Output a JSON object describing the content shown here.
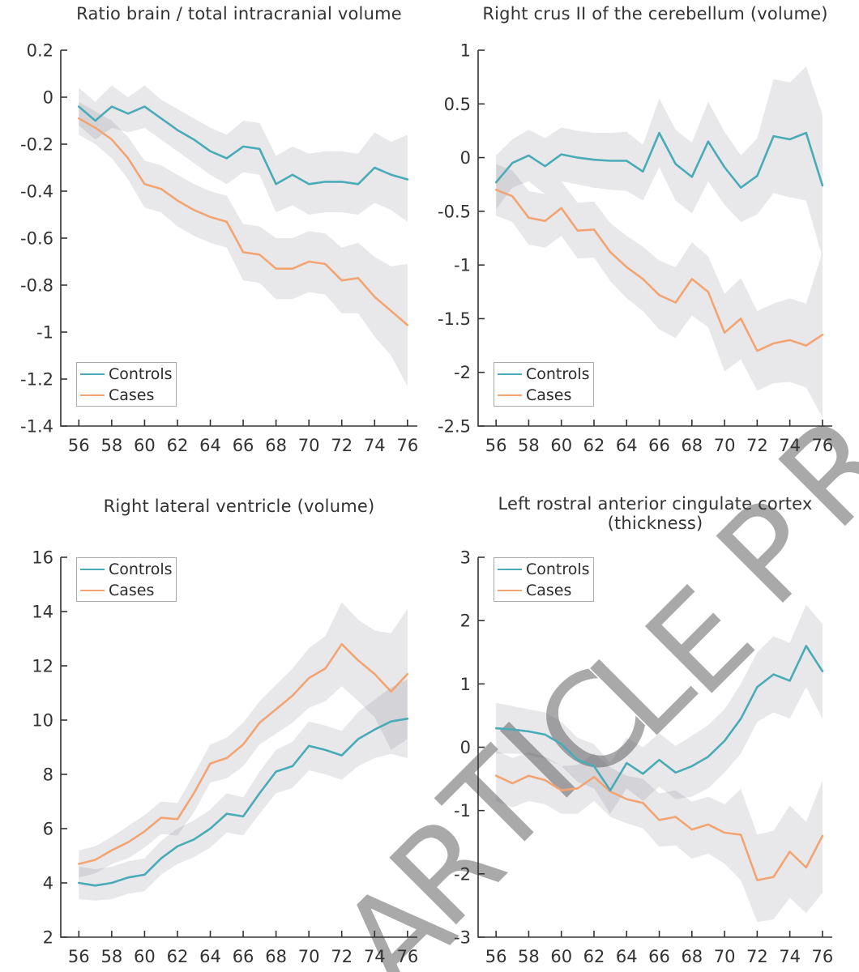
{
  "watermark": {
    "text": "ARTICLE PR"
  },
  "legend_labels": {
    "controls": "Controls",
    "cases": "Cases"
  },
  "colors": {
    "controls": "#4aabb8",
    "cases": "#f3a473",
    "band": "#5b5b68",
    "axis": "#333333",
    "tick_label": "#333333",
    "watermark": "#a9a9a9",
    "legend_border": "#ababab"
  },
  "x_axis": {
    "years": [
      56,
      57,
      58,
      59,
      60,
      61,
      62,
      63,
      64,
      65,
      66,
      67,
      68,
      69,
      70,
      71,
      72,
      73,
      74,
      75,
      76
    ],
    "tick_values": [
      56,
      58,
      60,
      62,
      64,
      66,
      68,
      70,
      72,
      74,
      76
    ],
    "tick_labels": [
      "56",
      "58",
      "60",
      "62",
      "64",
      "66",
      "68",
      "70",
      "72",
      "74",
      "76"
    ]
  },
  "chart_data": [
    {
      "type": "line",
      "title": "Ratio brain / total intracranial volume",
      "subtitle": "",
      "ylim": [
        -1.4,
        0.2
      ],
      "ytick_values": [
        0.2,
        0,
        -0.2,
        -0.4,
        -0.6,
        -0.8,
        -1,
        -1.2,
        -1.4
      ],
      "ytick_labels": [
        "0.2",
        "0",
        "-0.2",
        "-0.4",
        "-0.6",
        "-0.8",
        "-1",
        "-1.2",
        "-1.4"
      ],
      "legend_position": "bottom-left",
      "series": [
        {
          "name": "Controls",
          "values": [
            -0.04,
            -0.1,
            -0.04,
            -0.07,
            -0.04,
            -0.09,
            -0.14,
            -0.18,
            -0.23,
            -0.26,
            -0.21,
            -0.22,
            -0.37,
            -0.33,
            -0.37,
            -0.36,
            -0.36,
            -0.37,
            -0.3,
            -0.33,
            -0.35
          ],
          "band_upper": [
            0.04,
            -0.02,
            0.05,
            0.0,
            0.05,
            -0.01,
            -0.05,
            -0.09,
            -0.13,
            -0.16,
            -0.1,
            -0.11,
            -0.25,
            -0.21,
            -0.24,
            -0.23,
            -0.23,
            -0.24,
            -0.15,
            -0.19,
            -0.16
          ],
          "band_lower": [
            -0.12,
            -0.18,
            -0.13,
            -0.15,
            -0.13,
            -0.18,
            -0.23,
            -0.28,
            -0.33,
            -0.37,
            -0.32,
            -0.33,
            -0.49,
            -0.46,
            -0.5,
            -0.49,
            -0.49,
            -0.5,
            -0.45,
            -0.48,
            -0.53
          ]
        },
        {
          "name": "Cases",
          "values": [
            -0.09,
            -0.13,
            -0.18,
            -0.26,
            -0.37,
            -0.39,
            -0.44,
            -0.48,
            -0.51,
            -0.53,
            -0.66,
            -0.67,
            -0.73,
            -0.73,
            -0.7,
            -0.71,
            -0.78,
            -0.77,
            -0.85,
            -0.91,
            -0.97
          ],
          "band_upper": [
            -0.02,
            -0.06,
            -0.1,
            -0.17,
            -0.27,
            -0.29,
            -0.33,
            -0.37,
            -0.4,
            -0.42,
            -0.54,
            -0.55,
            -0.6,
            -0.6,
            -0.57,
            -0.58,
            -0.64,
            -0.62,
            -0.68,
            -0.72,
            -0.71
          ],
          "band_lower": [
            -0.16,
            -0.2,
            -0.26,
            -0.35,
            -0.47,
            -0.49,
            -0.55,
            -0.59,
            -0.62,
            -0.64,
            -0.78,
            -0.79,
            -0.86,
            -0.86,
            -0.83,
            -0.84,
            -0.92,
            -0.92,
            -1.02,
            -1.1,
            -1.23
          ]
        }
      ]
    },
    {
      "type": "line",
      "title": "Right crus II of the cerebellum (volume)",
      "subtitle": "",
      "ylim": [
        -2.5,
        1
      ],
      "ytick_values": [
        1,
        0.5,
        0,
        -0.5,
        -1,
        -1.5,
        -2,
        -2.5
      ],
      "ytick_labels": [
        "1",
        "0.5",
        "0",
        "-0.5",
        "-1",
        "-1.5",
        "-2",
        "-2.5"
      ],
      "legend_position": "bottom-left",
      "series": [
        {
          "name": "Controls",
          "values": [
            -0.23,
            -0.05,
            0.02,
            -0.08,
            0.03,
            0.0,
            -0.02,
            -0.03,
            -0.03,
            -0.13,
            0.23,
            -0.06,
            -0.18,
            0.15,
            -0.09,
            -0.28,
            -0.17,
            0.2,
            0.17,
            0.23,
            -0.26
          ],
          "band_upper": [
            0.02,
            0.17,
            0.26,
            0.18,
            0.28,
            0.25,
            0.23,
            0.23,
            0.24,
            0.12,
            0.55,
            0.26,
            0.14,
            0.52,
            0.24,
            0.02,
            0.18,
            0.73,
            0.7,
            0.85,
            0.4
          ],
          "band_lower": [
            -0.48,
            -0.28,
            -0.22,
            -0.34,
            -0.22,
            -0.25,
            -0.28,
            -0.3,
            -0.31,
            -0.4,
            -0.09,
            -0.4,
            -0.52,
            -0.22,
            -0.44,
            -0.6,
            -0.53,
            -0.33,
            -0.37,
            -0.4,
            -0.93
          ]
        },
        {
          "name": "Cases",
          "values": [
            -0.3,
            -0.36,
            -0.56,
            -0.59,
            -0.47,
            -0.68,
            -0.67,
            -0.88,
            -1.02,
            -1.13,
            -1.28,
            -1.35,
            -1.13,
            -1.25,
            -1.63,
            -1.5,
            -1.8,
            -1.73,
            -1.7,
            -1.75,
            -1.65
          ],
          "band_upper": [
            -0.06,
            -0.12,
            -0.31,
            -0.34,
            -0.22,
            -0.42,
            -0.41,
            -0.61,
            -0.73,
            -0.83,
            -0.96,
            -1.02,
            -0.79,
            -0.92,
            -1.27,
            -1.12,
            -1.43,
            -1.36,
            -1.31,
            -1.36,
            -0.88
          ],
          "band_lower": [
            -0.54,
            -0.6,
            -0.81,
            -0.84,
            -0.73,
            -0.94,
            -0.93,
            -1.15,
            -1.31,
            -1.43,
            -1.6,
            -1.68,
            -1.47,
            -1.58,
            -1.99,
            -1.88,
            -2.17,
            -2.1,
            -2.09,
            -2.14,
            -2.42
          ]
        }
      ]
    },
    {
      "type": "line",
      "title": "Right lateral ventricle (volume)",
      "subtitle": "",
      "ylim": [
        2,
        16
      ],
      "ytick_values": [
        16,
        14,
        12,
        10,
        8,
        6,
        4,
        2
      ],
      "ytick_labels": [
        "16",
        "14",
        "12",
        "10",
        "8",
        "6",
        "4",
        "2"
      ],
      "legend_position": "top-left",
      "series": [
        {
          "name": "Controls",
          "values": [
            4.0,
            3.9,
            4.0,
            4.2,
            4.3,
            4.9,
            5.35,
            5.6,
            6.0,
            6.55,
            6.45,
            7.3,
            8.1,
            8.3,
            9.05,
            8.9,
            8.7,
            9.3,
            9.65,
            9.95,
            10.05
          ],
          "band_upper": [
            4.6,
            4.5,
            4.6,
            4.8,
            4.9,
            5.55,
            6.0,
            6.3,
            6.7,
            7.3,
            7.15,
            8.1,
            8.9,
            9.2,
            9.95,
            9.8,
            9.6,
            10.3,
            10.75,
            11.2,
            11.5
          ],
          "band_lower": [
            3.4,
            3.35,
            3.4,
            3.6,
            3.7,
            4.3,
            4.7,
            4.95,
            5.3,
            5.85,
            5.75,
            6.55,
            7.3,
            7.5,
            8.15,
            8.0,
            7.8,
            8.3,
            8.6,
            8.75,
            8.6
          ]
        },
        {
          "name": "Cases",
          "values": [
            4.7,
            4.85,
            5.2,
            5.5,
            5.9,
            6.4,
            6.35,
            7.3,
            8.4,
            8.6,
            9.1,
            9.9,
            10.4,
            10.9,
            11.55,
            11.9,
            12.8,
            12.2,
            11.7,
            11.05,
            11.7
          ],
          "band_upper": [
            5.2,
            5.35,
            5.7,
            6.1,
            6.5,
            7.0,
            6.95,
            8.0,
            9.1,
            9.35,
            9.9,
            10.7,
            11.3,
            11.9,
            12.65,
            13.1,
            14.35,
            13.7,
            13.3,
            13.2,
            14.1
          ],
          "band_lower": [
            4.2,
            4.35,
            4.7,
            4.9,
            5.3,
            5.8,
            5.75,
            6.6,
            7.7,
            7.85,
            8.3,
            9.1,
            9.5,
            9.9,
            10.45,
            10.7,
            11.25,
            10.7,
            10.1,
            8.9,
            9.3
          ]
        }
      ]
    },
    {
      "type": "line",
      "title": "Left rostral anterior cingulate cortex",
      "subtitle": "(thickness)",
      "ylim": [
        -3,
        3
      ],
      "ytick_values": [
        3,
        2,
        1,
        0,
        -1,
        -2,
        -3
      ],
      "ytick_labels": [
        "3",
        "2",
        "1",
        "0",
        "-1",
        "-2",
        "-3"
      ],
      "legend_position": "top-left",
      "series": [
        {
          "name": "Controls",
          "values": [
            0.3,
            0.28,
            0.25,
            0.2,
            0.05,
            -0.2,
            -0.3,
            -0.68,
            -0.25,
            -0.42,
            -0.2,
            -0.4,
            -0.3,
            -0.15,
            0.1,
            0.45,
            0.95,
            1.15,
            1.05,
            1.6,
            1.2
          ],
          "band_upper": [
            0.7,
            0.65,
            0.6,
            0.55,
            0.4,
            0.15,
            0.05,
            -0.25,
            0.15,
            0.0,
            0.22,
            0.02,
            0.18,
            0.35,
            0.6,
            1.0,
            1.5,
            1.75,
            1.65,
            2.25,
            1.95
          ],
          "band_lower": [
            -0.1,
            -0.1,
            -0.12,
            -0.18,
            -0.3,
            -0.55,
            -0.65,
            -1.05,
            -0.65,
            -0.85,
            -0.62,
            -0.82,
            -0.78,
            -0.65,
            -0.4,
            -0.1,
            0.4,
            0.55,
            0.45,
            0.95,
            0.45
          ]
        },
        {
          "name": "Cases",
          "values": [
            -0.45,
            -0.57,
            -0.45,
            -0.52,
            -0.68,
            -0.65,
            -0.47,
            -0.7,
            -0.82,
            -0.88,
            -1.15,
            -1.1,
            -1.3,
            -1.22,
            -1.35,
            -1.38,
            -2.1,
            -2.05,
            -1.65,
            -1.9,
            -1.4
          ],
          "band_upper": [
            -0.05,
            -0.17,
            -0.08,
            -0.15,
            -0.3,
            -0.28,
            -0.1,
            -0.32,
            -0.45,
            -0.5,
            -0.73,
            -0.68,
            -0.86,
            -0.78,
            -0.9,
            -0.66,
            -1.38,
            -1.32,
            -0.92,
            -1.18,
            -0.52
          ],
          "band_lower": [
            -0.85,
            -0.95,
            -0.85,
            -0.9,
            -1.05,
            -1.05,
            -0.85,
            -1.1,
            -1.2,
            -1.28,
            -1.57,
            -1.55,
            -1.76,
            -1.68,
            -1.84,
            -2.1,
            -2.76,
            -2.72,
            -2.38,
            -2.62,
            -2.3
          ]
        }
      ]
    }
  ]
}
